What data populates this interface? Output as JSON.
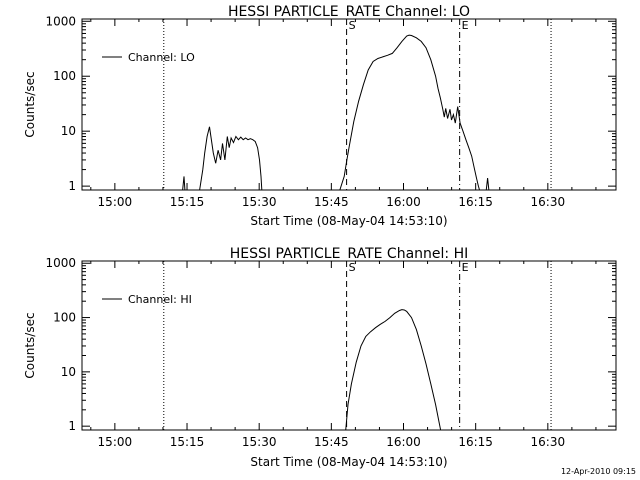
{
  "footer": {
    "timestamp": "12-Apr-2010 09:15"
  },
  "chart_data": [
    {
      "type": "line",
      "title": "HESSI PARTICLE_RATE Channel: LO",
      "xlabel": "Start Time (08-May-04 14:53:10)",
      "ylabel": "Counts/sec",
      "yscale": "log",
      "x_unit": "minutes after 14:53:10",
      "xlim": [
        0,
        111
      ],
      "ylim": [
        0.85,
        1100
      ],
      "x_ticks": [
        {
          "x": 6.83,
          "label": "15:00"
        },
        {
          "x": 21.83,
          "label": "15:15"
        },
        {
          "x": 36.83,
          "label": "15:30"
        },
        {
          "x": 51.83,
          "label": "15:45"
        },
        {
          "x": 66.83,
          "label": "16:00"
        },
        {
          "x": 81.83,
          "label": "16:15"
        },
        {
          "x": 96.83,
          "label": "16:30"
        }
      ],
      "y_ticks": [
        {
          "y": 1,
          "label": "1"
        },
        {
          "y": 10,
          "label": "10"
        },
        {
          "y": 100,
          "label": "100"
        },
        {
          "y": 1000,
          "label": "1000"
        }
      ],
      "legend": {
        "label": "Channel: LO",
        "placement": "top-left"
      },
      "markers": [
        {
          "x": 17.0,
          "style": "dotted",
          "label": ""
        },
        {
          "x": 55.0,
          "style": "dashed",
          "label": "S"
        },
        {
          "x": 78.5,
          "style": "dashdot",
          "label": "E"
        },
        {
          "x": 97.5,
          "style": "dotted",
          "label": ""
        }
      ],
      "series": [
        {
          "segments": [
            [
              [
                20.9,
                0.8
              ],
              [
                21.2,
                1.5
              ],
              [
                21.4,
                0.8
              ]
            ],
            [
              [
                24.4,
                0.8
              ],
              [
                25.1,
                2.0
              ],
              [
                25.5,
                4.0
              ],
              [
                26.0,
                8.0
              ],
              [
                26.5,
                12.0
              ],
              [
                26.8,
                8.0
              ],
              [
                27.3,
                4.0
              ],
              [
                27.8,
                2.6
              ],
              [
                28.3,
                4.5
              ],
              [
                28.8,
                3.0
              ],
              [
                29.2,
                6.0
              ],
              [
                29.7,
                3.0
              ],
              [
                30.2,
                8.0
              ],
              [
                30.6,
                5.0
              ],
              [
                31.0,
                7.5
              ],
              [
                31.5,
                6.2
              ],
              [
                32.0,
                8.0
              ],
              [
                32.5,
                7.0
              ],
              [
                33.0,
                7.8
              ],
              [
                33.5,
                7.0
              ],
              [
                34.0,
                7.5
              ],
              [
                34.5,
                7.0
              ],
              [
                35.0,
                7.3
              ],
              [
                35.5,
                7.0
              ],
              [
                36.0,
                6.5
              ],
              [
                36.5,
                5.0
              ],
              [
                36.9,
                3.0
              ],
              [
                37.2,
                1.5
              ],
              [
                37.4,
                0.8
              ]
            ],
            [
              [
                53.5,
                0.8
              ],
              [
                54.5,
                1.5
              ],
              [
                55.0,
                2.8
              ],
              [
                55.5,
                5.0
              ],
              [
                56.5,
                15.0
              ],
              [
                57.5,
                35.0
              ],
              [
                58.5,
                70.0
              ],
              [
                59.5,
                130.0
              ],
              [
                60.5,
                185.0
              ],
              [
                61.5,
                210.0
              ],
              [
                62.5,
                225.0
              ],
              [
                63.5,
                240.0
              ],
              [
                64.5,
                260.0
              ],
              [
                65.5,
                330.0
              ],
              [
                66.5,
                430.0
              ],
              [
                67.5,
                540.0
              ],
              [
                68.0,
                560.0
              ],
              [
                68.5,
                550.0
              ],
              [
                69.5,
                500.0
              ],
              [
                70.5,
                430.0
              ],
              [
                71.5,
                330.0
              ],
              [
                72.5,
                200.0
              ],
              [
                73.5,
                100.0
              ],
              [
                74.0,
                60.0
              ],
              [
                74.5,
                40.0
              ],
              [
                75.0,
                25.0
              ],
              [
                75.3,
                18.0
              ],
              [
                75.6,
                26.0
              ],
              [
                76.0,
                17.0
              ],
              [
                76.5,
                25.0
              ],
              [
                76.8,
                16.0
              ],
              [
                77.2,
                20.0
              ],
              [
                77.6,
                14.0
              ],
              [
                78.1,
                28.0
              ],
              [
                78.6,
                14.0
              ],
              [
                79.2,
                10.0
              ],
              [
                79.8,
                7.0
              ],
              [
                80.4,
                5.0
              ],
              [
                81.0,
                3.5
              ],
              [
                81.5,
                2.2
              ],
              [
                82.0,
                1.4
              ],
              [
                82.4,
                1.0
              ],
              [
                82.7,
                0.8
              ]
            ],
            [
              [
                84.0,
                0.8
              ],
              [
                84.3,
                1.4
              ],
              [
                84.6,
                0.8
              ]
            ]
          ]
        }
      ]
    },
    {
      "type": "line",
      "title": "HESSI PARTICLE_RATE Channel: HI",
      "xlabel": "Start Time (08-May-04 14:53:10)",
      "ylabel": "Counts/sec",
      "yscale": "log",
      "x_unit": "minutes after 14:53:10",
      "xlim": [
        0,
        111
      ],
      "ylim": [
        0.85,
        1100
      ],
      "x_ticks": [
        {
          "x": 6.83,
          "label": "15:00"
        },
        {
          "x": 21.83,
          "label": "15:15"
        },
        {
          "x": 36.83,
          "label": "15:30"
        },
        {
          "x": 51.83,
          "label": "15:45"
        },
        {
          "x": 66.83,
          "label": "16:00"
        },
        {
          "x": 81.83,
          "label": "16:15"
        },
        {
          "x": 96.83,
          "label": "16:30"
        }
      ],
      "y_ticks": [
        {
          "y": 1,
          "label": "1"
        },
        {
          "y": 10,
          "label": "10"
        },
        {
          "y": 100,
          "label": "100"
        },
        {
          "y": 1000,
          "label": "1000"
        }
      ],
      "legend": {
        "label": "Channel: HI",
        "placement": "top-left"
      },
      "markers": [
        {
          "x": 17.0,
          "style": "dotted",
          "label": ""
        },
        {
          "x": 55.0,
          "style": "dashed",
          "label": "S"
        },
        {
          "x": 78.5,
          "style": "dashdot",
          "label": "E"
        },
        {
          "x": 97.5,
          "style": "dotted",
          "label": ""
        }
      ],
      "series": [
        {
          "segments": [
            [
              [
                54.8,
                0.8
              ],
              [
                55.3,
                2.5
              ],
              [
                56.0,
                6.0
              ],
              [
                57.0,
                15.0
              ],
              [
                58.0,
                30.0
              ],
              [
                59.0,
                45.0
              ],
              [
                60.0,
                55.0
              ],
              [
                61.0,
                65.0
              ],
              [
                62.0,
                75.0
              ],
              [
                63.0,
                85.0
              ],
              [
                64.0,
                100.0
              ],
              [
                65.0,
                120.0
              ],
              [
                66.0,
                135.0
              ],
              [
                66.5,
                140.0
              ],
              [
                67.0,
                138.0
              ],
              [
                67.5,
                130.0
              ],
              [
                68.5,
                100.0
              ],
              [
                69.5,
                60.0
              ],
              [
                70.5,
                30.0
              ],
              [
                71.5,
                14.0
              ],
              [
                72.5,
                6.0
              ],
              [
                73.5,
                2.5
              ],
              [
                74.2,
                1.2
              ],
              [
                74.6,
                0.8
              ]
            ]
          ]
        }
      ]
    }
  ]
}
